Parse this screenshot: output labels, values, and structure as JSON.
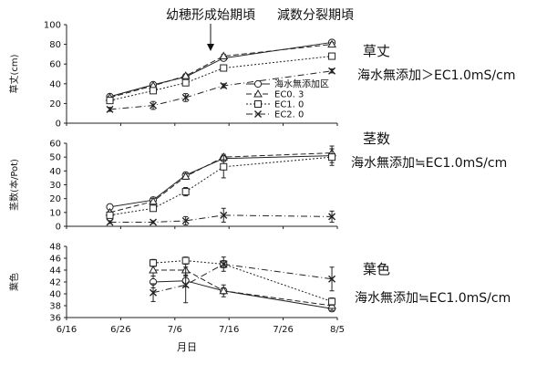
{
  "annotations": {
    "young_panicle": "幼穂形成始期頃",
    "reduction_division": "減数分裂期頃"
  },
  "x_axis": {
    "label": "月日",
    "ticks": [
      "6/16",
      "6/26",
      "7/6",
      "7/16",
      "7/26",
      "8/5"
    ],
    "tick_days": [
      0,
      10,
      20,
      30,
      40,
      50
    ]
  },
  "legend": [
    "海水無添加区",
    "EC0. 3",
    "EC1. 0",
    "EC2. 0"
  ],
  "chart_data": [
    {
      "type": "line",
      "title": "草丈",
      "conclusion": "海水無添加＞EC1.0mS/cm",
      "ylabel": "草丈(cm)",
      "ylim": [
        0,
        100
      ],
      "yticks": [
        0,
        20,
        40,
        60,
        80,
        100
      ],
      "x_dates": [
        "6/24",
        "7/2",
        "7/8",
        "7/15",
        "8/4"
      ],
      "x": [
        8,
        16,
        22,
        29,
        49
      ],
      "series": [
        {
          "name": "海水無添加区",
          "values": [
            27,
            39,
            47,
            66,
            82
          ],
          "err": [
            1,
            1,
            2,
            2,
            2
          ]
        },
        {
          "name": "EC0. 3",
          "values": [
            26,
            38,
            48,
            68,
            80
          ],
          "err": [
            1,
            1,
            2,
            2,
            2
          ]
        },
        {
          "name": "EC1. 0",
          "values": [
            23,
            33,
            41,
            56,
            68
          ],
          "err": [
            2,
            2,
            2,
            3,
            3
          ]
        },
        {
          "name": "EC2. 0",
          "values": [
            14,
            18,
            26,
            38,
            53
          ],
          "err": [
            2,
            4,
            4,
            2,
            2
          ]
        }
      ]
    },
    {
      "type": "line",
      "title": "茎数",
      "conclusion": "海水無添加≒EC1.0mS/cm",
      "ylabel": "茎数(本/Pot)",
      "ylim": [
        0,
        60
      ],
      "yticks": [
        0,
        10,
        20,
        30,
        40,
        50,
        60
      ],
      "x_dates": [
        "6/24",
        "7/2",
        "7/8",
        "7/15",
        "8/4"
      ],
      "x": [
        8,
        16,
        22,
        29,
        49
      ],
      "series": [
        {
          "name": "海水無添加区",
          "values": [
            14,
            19,
            37,
            49,
            51
          ],
          "err": [
            1,
            2,
            2,
            2,
            5
          ]
        },
        {
          "name": "EC0. 3",
          "values": [
            10,
            18,
            36,
            50,
            53
          ],
          "err": [
            1,
            2,
            2,
            2,
            5
          ]
        },
        {
          "name": "EC1. 0",
          "values": [
            8,
            13,
            25,
            43,
            50
          ],
          "err": [
            2,
            2,
            3,
            8,
            6
          ]
        },
        {
          "name": "EC2. 0",
          "values": [
            3,
            3,
            4,
            8,
            7
          ],
          "err": [
            1,
            1,
            3,
            5,
            4
          ]
        }
      ]
    },
    {
      "type": "line",
      "title": "葉色",
      "conclusion": "海水無添加≒EC1.0mS/cm",
      "ylabel": "葉色",
      "ylim": [
        36,
        48
      ],
      "yticks": [
        36,
        38,
        40,
        42,
        44,
        46,
        48
      ],
      "x_dates": [
        "7/2",
        "7/8",
        "7/15",
        "8/4"
      ],
      "x": [
        16,
        22,
        29,
        49
      ],
      "series": [
        {
          "name": "海水無添加区",
          "values": [
            42,
            42.2,
            40.5,
            37.5
          ],
          "err": [
            1,
            1,
            0.5,
            0.5
          ]
        },
        {
          "name": "EC0. 3",
          "values": [
            44,
            44,
            40.5,
            38
          ],
          "err": [
            1,
            1,
            1,
            0.8
          ]
        },
        {
          "name": "EC1. 0",
          "values": [
            45.2,
            45.6,
            45,
            38.7
          ],
          "err": [
            0.6,
            0.6,
            0.6,
            0.6
          ]
        },
        {
          "name": "EC2. 0",
          "values": [
            40.2,
            41.5,
            45,
            42.5
          ],
          "err": [
            1.5,
            3,
            1.2,
            2
          ]
        }
      ]
    }
  ]
}
